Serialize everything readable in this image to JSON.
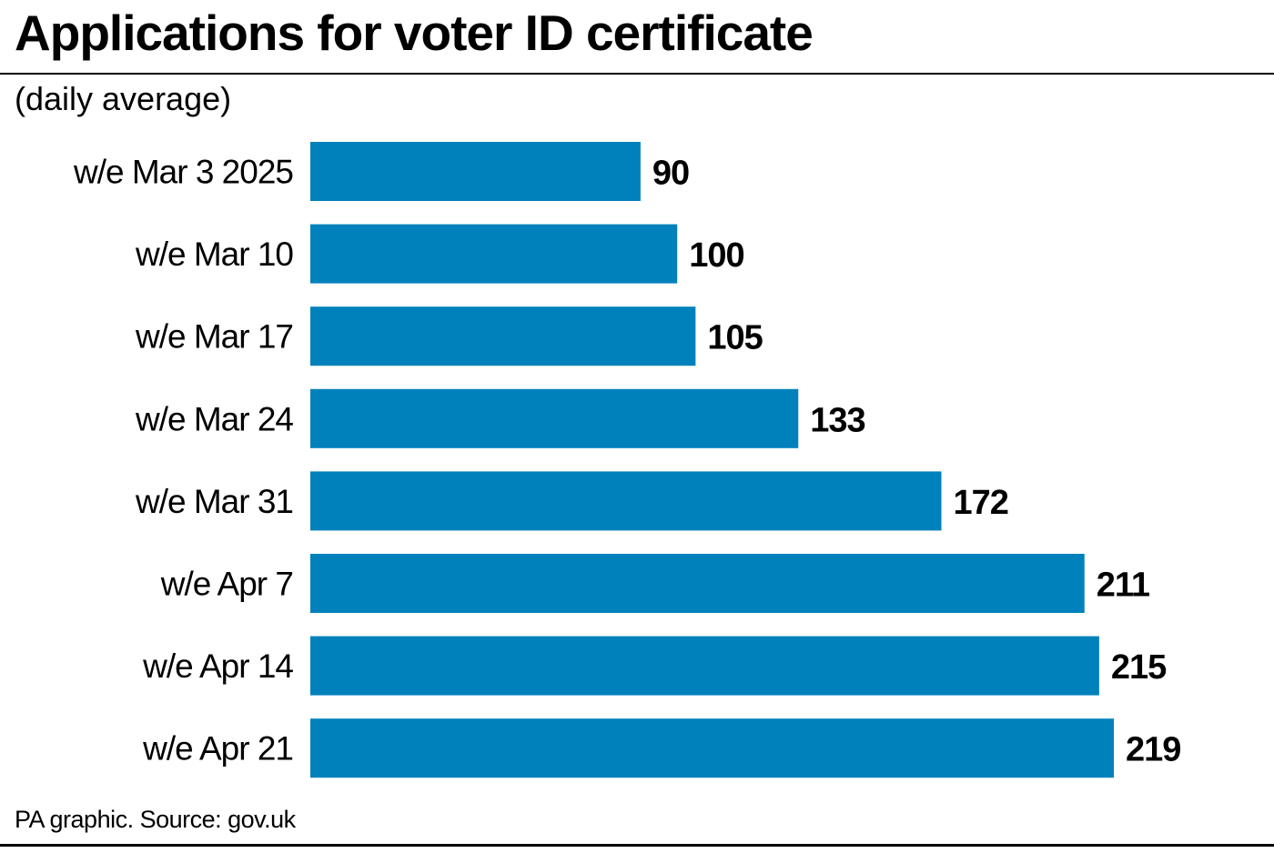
{
  "chart_data": {
    "type": "bar",
    "orientation": "horizontal",
    "title": "Applications for voter ID certificate",
    "subtitle": "(daily average)",
    "categories": [
      "w/e Mar 3 2025",
      "w/e Mar 10",
      "w/e Mar 17",
      "w/e Mar 24",
      "w/e Mar 31",
      "w/e Apr 7",
      "w/e Apr 14",
      "w/e Apr 21"
    ],
    "values": [
      90,
      100,
      105,
      133,
      172,
      211,
      215,
      219
    ],
    "data_labels": true,
    "xlim": [
      0,
      219
    ],
    "grid": false,
    "bar_color": "#0081bc"
  },
  "footer": "PA graphic. Source: gov.uk"
}
